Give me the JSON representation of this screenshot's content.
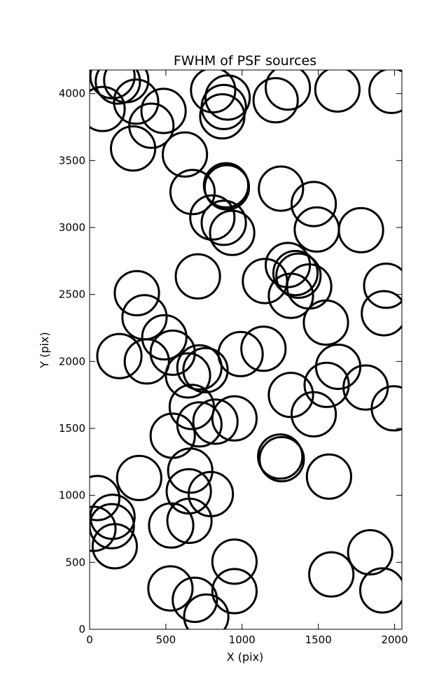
{
  "chart_data": {
    "type": "scatter",
    "title": "FWHM of PSF sources",
    "xlabel": "X (pix)",
    "ylabel": "Y (pix)",
    "xlim": [
      0,
      2048
    ],
    "ylim": [
      0,
      4176
    ],
    "xticks": [
      0,
      500,
      1000,
      1500,
      2000
    ],
    "yticks": [
      0,
      500,
      1000,
      1500,
      2000,
      2500,
      3000,
      3500,
      4000
    ],
    "grid": false,
    "marker": "open circle",
    "marker_radius_pix": 145,
    "series": [
      {
        "color": "#000000",
        "points": [
          [
            150,
            4130
          ],
          [
            185,
            4090
          ],
          [
            240,
            4100
          ],
          [
            305,
            3940
          ],
          [
            85,
            3885
          ],
          [
            485,
            3870
          ],
          [
            285,
            3590
          ],
          [
            625,
            3545
          ],
          [
            810,
            4025
          ],
          [
            905,
            3970
          ],
          [
            880,
            3900
          ],
          [
            870,
            3830
          ],
          [
            1220,
            3950
          ],
          [
            1300,
            4045
          ],
          [
            1625,
            4030
          ],
          [
            1980,
            4020
          ],
          [
            675,
            3265
          ],
          [
            895,
            3315
          ],
          [
            900,
            3300
          ],
          [
            1255,
            3290
          ],
          [
            1470,
            3175
          ],
          [
            805,
            3075
          ],
          [
            880,
            3035
          ],
          [
            935,
            2960
          ],
          [
            1490,
            2985
          ],
          [
            1780,
            2980
          ],
          [
            710,
            2635
          ],
          [
            1300,
            2720
          ],
          [
            1350,
            2660
          ],
          [
            1370,
            2640
          ],
          [
            1150,
            2600
          ],
          [
            1440,
            2560
          ],
          [
            1320,
            2490
          ],
          [
            1945,
            2565
          ],
          [
            1930,
            2360
          ],
          [
            310,
            2510
          ],
          [
            360,
            2330
          ],
          [
            490,
            2180
          ],
          [
            545,
            2065
          ],
          [
            1550,
            2290
          ],
          [
            1140,
            2095
          ],
          [
            990,
            2055
          ],
          [
            195,
            2040
          ],
          [
            375,
            2000
          ],
          [
            720,
            1955
          ],
          [
            760,
            1935
          ],
          [
            645,
            1895
          ],
          [
            1630,
            1960
          ],
          [
            1555,
            1825
          ],
          [
            1810,
            1805
          ],
          [
            1320,
            1750
          ],
          [
            670,
            1660
          ],
          [
            1470,
            1605
          ],
          [
            1995,
            1650
          ],
          [
            950,
            1575
          ],
          [
            825,
            1550
          ],
          [
            720,
            1530
          ],
          [
            545,
            1445
          ],
          [
            1250,
            1290
          ],
          [
            1260,
            1270
          ],
          [
            660,
            1185
          ],
          [
            325,
            1130
          ],
          [
            1570,
            1140
          ],
          [
            50,
            980
          ],
          [
            650,
            1030
          ],
          [
            795,
            1010
          ],
          [
            150,
            840
          ],
          [
            145,
            770
          ],
          [
            25,
            750
          ],
          [
            535,
            775
          ],
          [
            655,
            810
          ],
          [
            165,
            620
          ],
          [
            950,
            505
          ],
          [
            1840,
            575
          ],
          [
            1585,
            410
          ],
          [
            530,
            305
          ],
          [
            690,
            220
          ],
          [
            765,
            95
          ],
          [
            950,
            285
          ],
          [
            1920,
            290
          ]
        ]
      },
      {
        "color": "#ff00ff",
        "points": [
          [
            405,
            3760
          ]
        ]
      }
    ]
  }
}
